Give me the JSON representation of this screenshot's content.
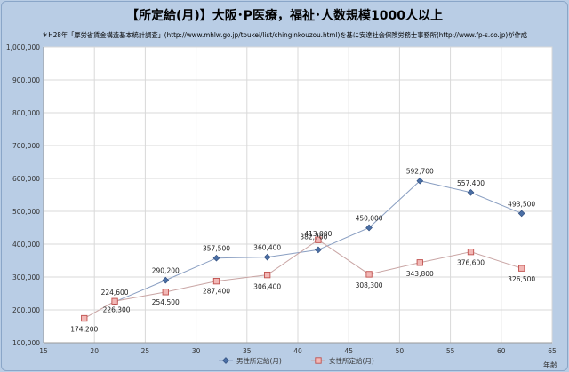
{
  "chart_data": {
    "type": "line",
    "title": "【所定給(月)】大阪･P医療，福祉･人数規模1000人以上",
    "subtitle": "＊H28年「厚労省賃金構造基本統計調査」(http://www.mhlw.go.jp/toukei/list/chinginkouzou.html)を基に安達社会保険労務士事務所(http://www.fp-s.co.jp)が作成",
    "xlabel": "年齢",
    "ylabel": "",
    "xlim": [
      15,
      65
    ],
    "ylim": [
      100000,
      1000000
    ],
    "x_ticks": [
      "15",
      "20",
      "25",
      "30",
      "35",
      "40",
      "45",
      "50",
      "55",
      "60",
      "65"
    ],
    "y_ticks": [
      "100,000",
      "200,000",
      "300,000",
      "400,000",
      "500,000",
      "600,000",
      "700,000",
      "800,000",
      "900,000",
      "1,000,000"
    ],
    "grid": true,
    "legend_position": "bottom",
    "series": [
      {
        "name": "男性所定給(月)",
        "color": "#4a6fa5",
        "marker": "diamond",
        "x": [
          22,
          27,
          32,
          37,
          42,
          47,
          52,
          57,
          62
        ],
        "values": [
          224600,
          290200,
          357500,
          360400,
          382700,
          450000,
          592700,
          557400,
          493500
        ],
        "labels": [
          "224,600",
          "290,200",
          "357,500",
          "360,400",
          "382,700",
          "450,000",
          "592,700",
          "557,400",
          "493,500"
        ]
      },
      {
        "name": "女性所定給(月)",
        "color": "#c0504d",
        "marker": "square",
        "x": [
          19,
          22,
          27,
          32,
          37,
          42,
          47,
          52,
          57,
          62
        ],
        "values": [
          174200,
          226300,
          254500,
          287400,
          306400,
          413000,
          308300,
          343800,
          376600,
          326500
        ],
        "labels": [
          "174,200",
          "226,300",
          "254,500",
          "287,400",
          "306,400",
          "413,000",
          "308,300",
          "343,800",
          "376,600",
          "326,500"
        ]
      }
    ]
  }
}
